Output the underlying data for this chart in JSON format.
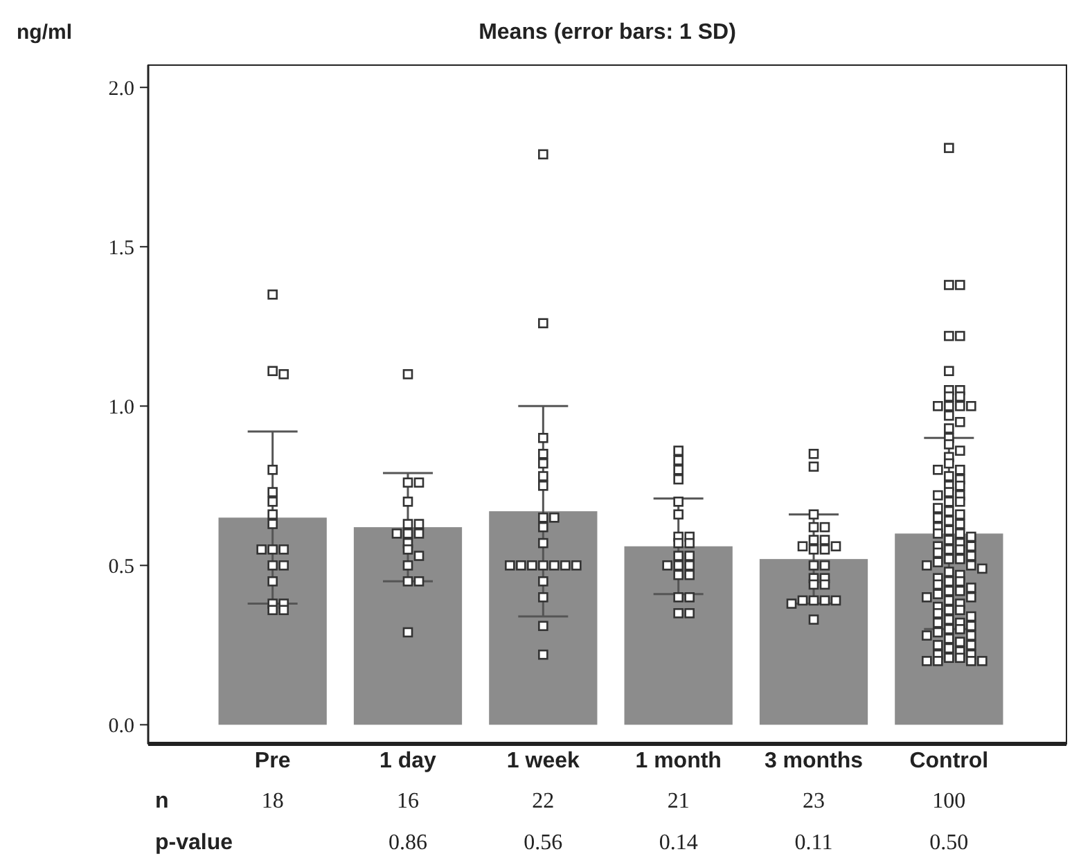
{
  "chart_data": {
    "type": "bar",
    "title": "Means (error bars: 1 SD)",
    "ylabel": "ng/ml",
    "categories": [
      "Pre",
      "1 day",
      "1 week",
      "1 month",
      "3 months",
      "Control"
    ],
    "ylim": [
      -0.06,
      2.07
    ],
    "yticks": [
      {
        "value": 0,
        "label": "0.0"
      },
      {
        "value": 0.5,
        "label": "0.5"
      },
      {
        "value": 1,
        "label": "1.0"
      },
      {
        "value": 1.5,
        "label": "1.5"
      },
      {
        "value": 2,
        "label": "2.0"
      }
    ],
    "grid": false,
    "series": [
      {
        "color": "#8c8c8c",
        "values": [
          0.65,
          0.62,
          0.67,
          0.56,
          0.52,
          0.6
        ],
        "errors": [
          0.27,
          0.17,
          0.33,
          0.15,
          0.14,
          0.3
        ]
      },
      {
        "type": "scatter",
        "color": "#ffffff",
        "marker": "square",
        "x": [
          "Pre",
          "Pre",
          "Pre",
          "Pre",
          "Pre",
          "Pre",
          "Pre",
          "Pre",
          "Pre",
          "Pre",
          "Pre",
          "Pre",
          "Pre",
          "Pre",
          "Pre",
          "Pre",
          "Pre",
          "Pre",
          "1 day",
          "1 day",
          "1 day",
          "1 day",
          "1 day",
          "1 day",
          "1 day",
          "1 day",
          "1 day",
          "1 day",
          "1 day",
          "1 day",
          "1 day",
          "1 day",
          "1 day",
          "1 day",
          "1 week",
          "1 week",
          "1 week",
          "1 week",
          "1 week",
          "1 week",
          "1 week",
          "1 week",
          "1 week",
          "1 week",
          "1 week",
          "1 week",
          "1 week",
          "1 week",
          "1 week",
          "1 week",
          "1 week",
          "1 week",
          "1 week",
          "1 week",
          "1 week",
          "1 week",
          "1 month",
          "1 month",
          "1 month",
          "1 month",
          "1 month",
          "1 month",
          "1 month",
          "1 month",
          "1 month",
          "1 month",
          "1 month",
          "1 month",
          "1 month",
          "1 month",
          "1 month",
          "1 month",
          "1 month",
          "1 month",
          "1 month",
          "1 month",
          "1 month",
          "3 months",
          "3 months",
          "3 months",
          "3 months",
          "3 months",
          "3 months",
          "3 months",
          "3 months",
          "3 months",
          "3 months",
          "3 months",
          "3 months",
          "3 months",
          "3 months",
          "3 months",
          "3 months",
          "3 months",
          "3 months",
          "3 months",
          "3 months",
          "3 months",
          "3 months",
          "3 months",
          "Control",
          "Control",
          "Control",
          "Control",
          "Control",
          "Control",
          "Control",
          "Control",
          "Control",
          "Control",
          "Control",
          "Control",
          "Control",
          "Control",
          "Control",
          "Control",
          "Control",
          "Control",
          "Control",
          "Control",
          "Control",
          "Control",
          "Control",
          "Control",
          "Control",
          "Control",
          "Control",
          "Control",
          "Control",
          "Control",
          "Control",
          "Control",
          "Control",
          "Control",
          "Control",
          "Control",
          "Control",
          "Control",
          "Control",
          "Control",
          "Control",
          "Control",
          "Control",
          "Control",
          "Control",
          "Control",
          "Control",
          "Control",
          "Control",
          "Control",
          "Control",
          "Control",
          "Control",
          "Control",
          "Control",
          "Control",
          "Control",
          "Control",
          "Control",
          "Control",
          "Control",
          "Control",
          "Control",
          "Control",
          "Control",
          "Control",
          "Control",
          "Control",
          "Control",
          "Control",
          "Control",
          "Control",
          "Control",
          "Control",
          "Control",
          "Control",
          "Control",
          "Control",
          "Control",
          "Control",
          "Control",
          "Control",
          "Control",
          "Control",
          "Control",
          "Control",
          "Control",
          "Control",
          "Control",
          "Control",
          "Control",
          "Control",
          "Control",
          "Control",
          "Control",
          "Control",
          "Control",
          "Control",
          "Control",
          "Control"
        ],
        "values": [
          1.35,
          1.11,
          1.1,
          0.8,
          0.73,
          0.7,
          0.66,
          0.63,
          0.55,
          0.55,
          0.55,
          0.5,
          0.5,
          0.45,
          0.38,
          0.38,
          0.36,
          0.36,
          1.1,
          0.76,
          0.76,
          0.7,
          0.63,
          0.63,
          0.6,
          0.6,
          0.6,
          0.57,
          0.55,
          0.53,
          0.5,
          0.45,
          0.45,
          0.29,
          1.79,
          1.26,
          0.9,
          0.85,
          0.82,
          0.78,
          0.75,
          0.65,
          0.65,
          0.62,
          0.57,
          0.5,
          0.5,
          0.5,
          0.5,
          0.5,
          0.5,
          0.5,
          0.45,
          0.4,
          0.31,
          0.22,
          0.86,
          0.83,
          0.8,
          0.77,
          0.7,
          0.66,
          0.59,
          0.59,
          0.57,
          0.57,
          0.53,
          0.53,
          0.5,
          0.5,
          0.5,
          0.47,
          0.47,
          0.4,
          0.4,
          0.35,
          0.35,
          0.85,
          0.81,
          0.66,
          0.62,
          0.62,
          0.58,
          0.58,
          0.56,
          0.56,
          0.55,
          0.55,
          0.5,
          0.5,
          0.46,
          0.46,
          0.44,
          0.44,
          0.39,
          0.39,
          0.39,
          0.39,
          0.38,
          0.33,
          1.81,
          1.38,
          1.38,
          1.22,
          1.22,
          1.11,
          1.05,
          1.05,
          1.03,
          1.03,
          1.0,
          1.0,
          1.0,
          1.0,
          0.97,
          0.95,
          0.93,
          0.9,
          0.88,
          0.86,
          0.84,
          0.82,
          0.8,
          0.8,
          0.78,
          0.77,
          0.75,
          0.75,
          0.73,
          0.72,
          0.72,
          0.7,
          0.7,
          0.68,
          0.67,
          0.66,
          0.65,
          0.64,
          0.63,
          0.62,
          0.61,
          0.6,
          0.6,
          0.59,
          0.58,
          0.57,
          0.56,
          0.56,
          0.55,
          0.55,
          0.54,
          0.53,
          0.52,
          0.52,
          0.51,
          0.5,
          0.5,
          0.49,
          0.48,
          0.47,
          0.46,
          0.45,
          0.45,
          0.44,
          0.43,
          0.42,
          0.42,
          0.41,
          0.4,
          0.4,
          0.39,
          0.38,
          0.37,
          0.36,
          0.36,
          0.35,
          0.34,
          0.33,
          0.32,
          0.32,
          0.31,
          0.3,
          0.3,
          0.29,
          0.28,
          0.28,
          0.27,
          0.26,
          0.25,
          0.25,
          0.24,
          0.23,
          0.22,
          0.22,
          0.21,
          0.21,
          0.2,
          0.2,
          0.2,
          0.2
        ]
      }
    ],
    "annotations": [
      "n",
      "18",
      "16",
      "22",
      "21",
      "23",
      "100",
      "p-value",
      "0.86",
      "0.56",
      "0.14",
      "0.11",
      "0.50"
    ]
  }
}
